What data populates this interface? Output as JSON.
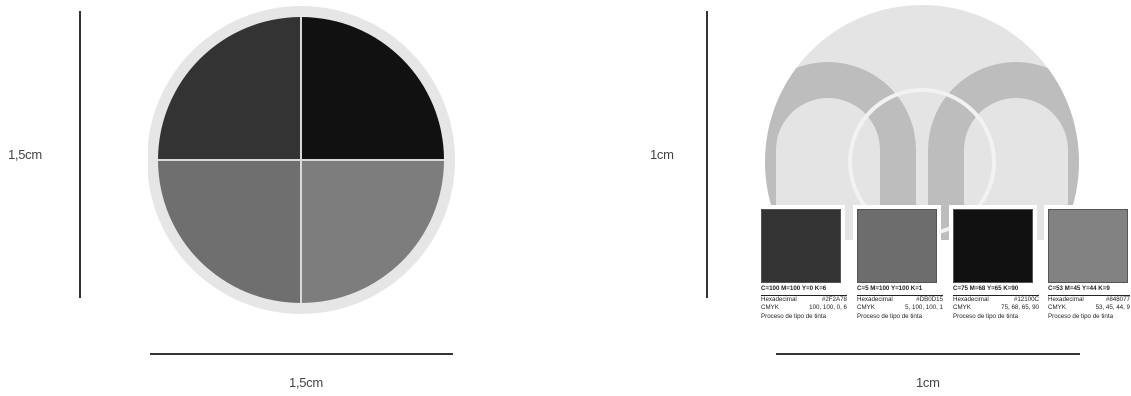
{
  "left_diagram": {
    "height_label": "1,5cm",
    "width_label": "1,5cm",
    "colors": {
      "ring": "#e6e6e6",
      "top_left": "#333333",
      "top_right": "#111111",
      "bottom_left": "#6f6f6f",
      "bottom_right": "#7d7d7d",
      "divider": "#d9d9d9"
    }
  },
  "right_diagram": {
    "height_label": "1cm",
    "width_label": "1cm",
    "colors": {
      "disc": "#e4e4e4",
      "arch": "#bdbdbd",
      "ring_outline": "#f2f2f2"
    },
    "swatches": [
      {
        "color": "#333333",
        "cmyk_line": "C=100 M=100 Y=0 K=6",
        "hex_label": "Hexadecimal",
        "hex_value": "#2F2A78",
        "cmyk_label": "CMYK",
        "cmyk_value": "100, 100, 0, 6",
        "process": "Proceso de tipo de tinta"
      },
      {
        "color": "#6d6d6d",
        "cmyk_line": "C=5 M=100 Y=100 K=1",
        "hex_label": "Hexadecimal",
        "hex_value": "#DB0D15",
        "cmyk_label": "CMYK",
        "cmyk_value": "5, 100, 100, 1",
        "process": "Proceso de tipo de tinta"
      },
      {
        "color": "#111111",
        "cmyk_line": "C=75 M=68 Y=65 K=90",
        "hex_label": "Hexadecimal",
        "hex_value": "#12100C",
        "cmyk_label": "CMYK",
        "cmyk_value": "75, 68, 65, 90",
        "process": "Proceso de tipo de tinta"
      },
      {
        "color": "#828282",
        "cmyk_line": "C=53 M=45 Y=44 K=9",
        "hex_label": "Hexadecimal",
        "hex_value": "#848077",
        "cmyk_label": "CMYK",
        "cmyk_value": "53, 45, 44, 9",
        "process": "Proceso de tipo de tinta"
      }
    ]
  }
}
